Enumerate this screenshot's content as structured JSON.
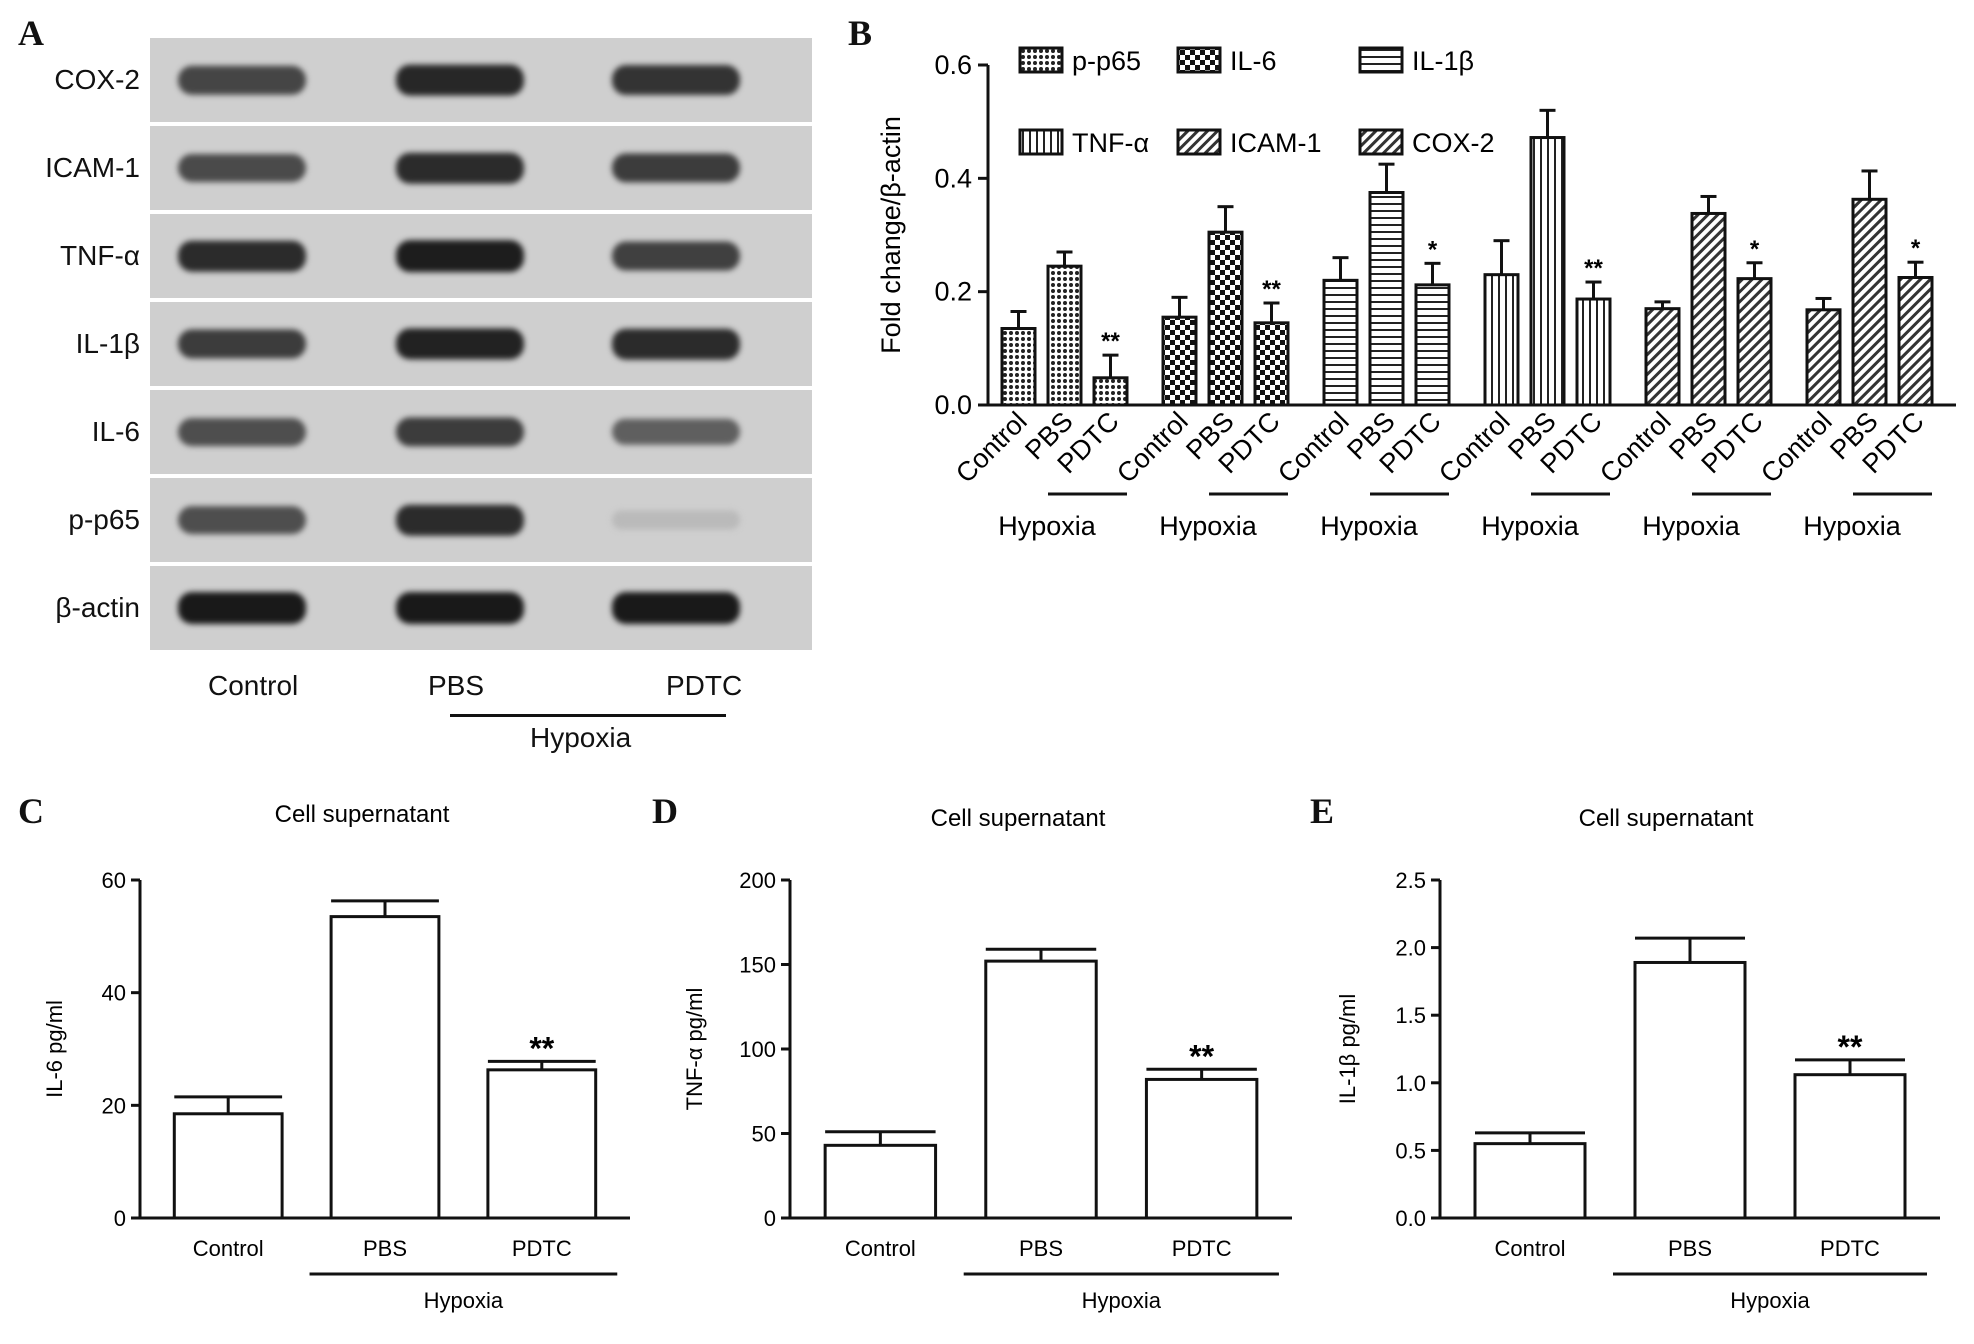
{
  "panels": {
    "a": "A",
    "b": "B",
    "c": "C",
    "d": "D",
    "e": "E"
  },
  "blot": {
    "rows": [
      {
        "label": "COX-2",
        "intensities": [
          0.75,
          0.92,
          0.85
        ]
      },
      {
        "label": "ICAM-1",
        "intensities": [
          0.72,
          0.9,
          0.8
        ]
      },
      {
        "label": "TNF-α",
        "intensities": [
          0.9,
          0.98,
          0.78
        ]
      },
      {
        "label": "IL-1β",
        "intensities": [
          0.8,
          0.95,
          0.9
        ]
      },
      {
        "label": "IL-6",
        "intensities": [
          0.7,
          0.8,
          0.6
        ]
      },
      {
        "label": "p-p65",
        "intensities": [
          0.7,
          0.9,
          0.08
        ]
      },
      {
        "label": "β-actin",
        "intensities": [
          1.0,
          1.0,
          1.0
        ]
      }
    ],
    "lanes": [
      "Control",
      "PBS",
      "PDTC"
    ],
    "group_label": "Hypoxia"
  },
  "chart_data": [
    {
      "id": "B",
      "type": "bar",
      "ylabel": "Fold change/β-actin",
      "ylim": [
        0,
        0.6
      ],
      "yticks": [
        "0.0",
        "0.2",
        "0.4",
        "0.6"
      ],
      "grid": false,
      "legend": {
        "position": "top",
        "entries": [
          "p-p65",
          "IL-6",
          "IL-1β",
          "TNF-α",
          "ICAM-1",
          "COX-2"
        ]
      },
      "group_label": "Hypoxia",
      "categories": [
        "Control",
        "PBS",
        "PDTC"
      ],
      "series": [
        {
          "name": "p-p65",
          "pattern": "dots",
          "values": [
            0.135,
            0.245,
            0.048
          ],
          "errors": [
            0.03,
            0.025,
            0.04
          ],
          "sig": [
            "",
            "",
            "**"
          ]
        },
        {
          "name": "IL-6",
          "pattern": "check",
          "values": [
            0.155,
            0.305,
            0.145
          ],
          "errors": [
            0.035,
            0.045,
            0.035
          ],
          "sig": [
            "",
            "",
            "**"
          ]
        },
        {
          "name": "IL-1β",
          "pattern": "hlines",
          "values": [
            0.22,
            0.375,
            0.212
          ],
          "errors": [
            0.04,
            0.05,
            0.038
          ],
          "sig": [
            "",
            "",
            "*"
          ]
        },
        {
          "name": "TNF-α",
          "pattern": "vlines",
          "values": [
            0.23,
            0.472,
            0.187
          ],
          "errors": [
            0.06,
            0.048,
            0.03
          ],
          "sig": [
            "",
            "",
            "**"
          ]
        },
        {
          "name": "ICAM-1",
          "pattern": "diag",
          "values": [
            0.17,
            0.338,
            0.223
          ],
          "errors": [
            0.012,
            0.03,
            0.028
          ],
          "sig": [
            "",
            "",
            "*"
          ]
        },
        {
          "name": "COX-2",
          "pattern": "diag",
          "values": [
            0.168,
            0.363,
            0.225
          ],
          "errors": [
            0.02,
            0.05,
            0.027
          ],
          "sig": [
            "",
            "",
            "*"
          ]
        }
      ]
    },
    {
      "id": "C",
      "type": "bar",
      "title": "Cell supernatant",
      "ylabel": "IL-6 pg/ml",
      "ylim": [
        0,
        60
      ],
      "yticks": [
        "0",
        "20",
        "40",
        "60"
      ],
      "categories": [
        "Control",
        "PBS",
        "PDTC"
      ],
      "values": [
        18.5,
        53.5,
        26.3
      ],
      "errors": [
        3.0,
        2.8,
        1.5
      ],
      "sig": [
        "",
        "",
        "**"
      ],
      "group_label": "Hypoxia"
    },
    {
      "id": "D",
      "type": "bar",
      "title": "Cell supernatant",
      "ylabel": "TNF-α pg/ml",
      "ylim": [
        0,
        200
      ],
      "yticks": [
        "0",
        "50",
        "100",
        "150",
        "200"
      ],
      "categories": [
        "Control",
        "PBS",
        "PDTC"
      ],
      "values": [
        43,
        152,
        82
      ],
      "errors": [
        8,
        7,
        6
      ],
      "sig": [
        "",
        "",
        "**"
      ],
      "group_label": "Hypoxia"
    },
    {
      "id": "E",
      "type": "bar",
      "title": "Cell supernatant",
      "ylabel": "IL-1β pg/ml",
      "ylim": [
        0,
        2.5
      ],
      "yticks": [
        "0.0",
        "0.5",
        "1.0",
        "1.5",
        "2.0",
        "2.5"
      ],
      "categories": [
        "Control",
        "PBS",
        "PDTC"
      ],
      "values": [
        0.55,
        1.89,
        1.06
      ],
      "errors": [
        0.08,
        0.18,
        0.11
      ],
      "sig": [
        "",
        "",
        "**"
      ],
      "group_label": "Hypoxia"
    }
  ]
}
